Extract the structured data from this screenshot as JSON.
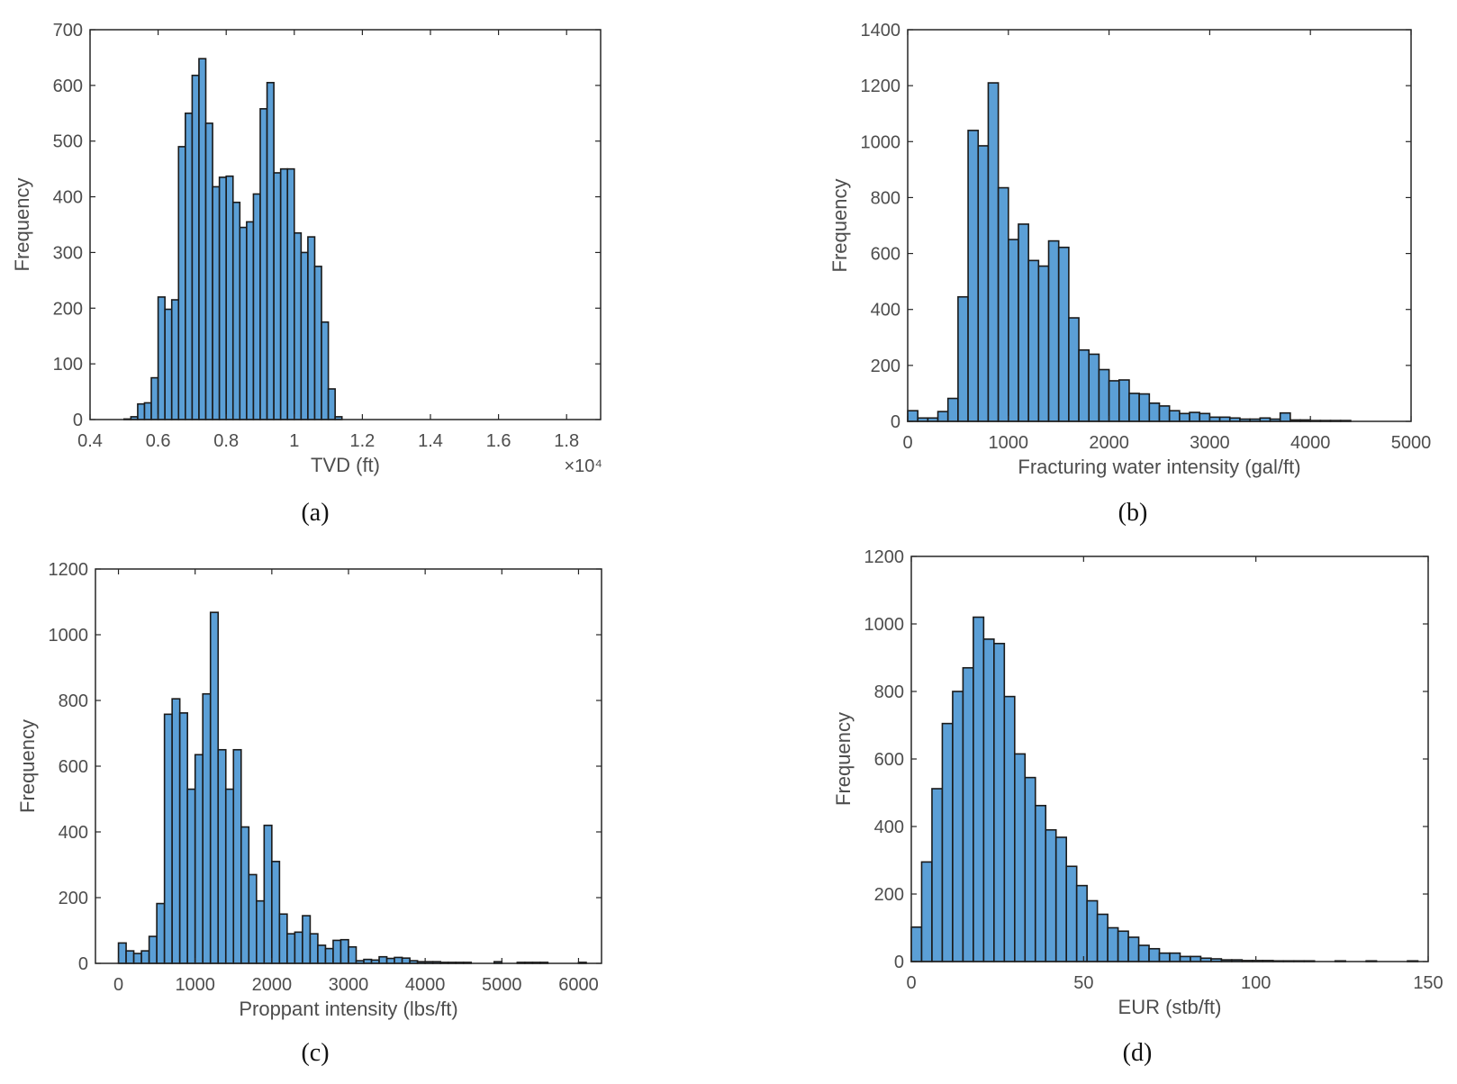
{
  "figure_captions": [
    "(a)",
    "(b)",
    "(c)",
    "(d)"
  ],
  "colors": {
    "bar_fill": "#5b9fd6",
    "bar_stroke": "#1a1a1a",
    "axis": "#262626",
    "text": "#4d4d4d"
  },
  "chart_data": [
    {
      "type": "bar",
      "histogram": true,
      "caption": "(a)",
      "title": "",
      "xlabel": "TVD (ft)",
      "ylabel": "Frequency",
      "x_exponent_label": "×10⁴",
      "xlim": [
        0.4,
        1.9
      ],
      "ylim": [
        0,
        700
      ],
      "xticks": [
        0.4,
        0.6,
        0.8,
        1,
        1.2,
        1.4,
        1.6,
        1.8
      ],
      "xtick_labels": [
        "0.4",
        "0.6",
        "0.8",
        "1",
        "1.2",
        "1.4",
        "1.6",
        "1.8"
      ],
      "yticks": [
        0,
        100,
        200,
        300,
        400,
        500,
        600,
        700
      ],
      "ytick_labels": [
        "0",
        "100",
        "200",
        "300",
        "400",
        "500",
        "600",
        "700"
      ],
      "bin_start": 0.5,
      "bin_width": 0.02,
      "values": [
        1,
        5,
        28,
        30,
        75,
        220,
        198,
        215,
        490,
        550,
        618,
        648,
        532,
        418,
        435,
        437,
        390,
        345,
        355,
        405,
        558,
        605,
        443,
        450,
        450,
        335,
        300,
        328,
        275,
        175,
        55,
        5
      ]
    },
    {
      "type": "bar",
      "histogram": true,
      "caption": "(b)",
      "title": "",
      "xlabel": "Fracturing water intensity (gal/ft)",
      "ylabel": "Frequency",
      "xlim": [
        0,
        5000
      ],
      "ylim": [
        0,
        1400
      ],
      "xticks": [
        0,
        1000,
        2000,
        3000,
        4000,
        5000
      ],
      "xtick_labels": [
        "0",
        "1000",
        "2000",
        "3000",
        "4000",
        "5000"
      ],
      "yticks": [
        0,
        200,
        400,
        600,
        800,
        1000,
        1200,
        1400
      ],
      "ytick_labels": [
        "0",
        "200",
        "400",
        "600",
        "800",
        "1000",
        "1200",
        "1400"
      ],
      "bin_start": 0,
      "bin_width": 100,
      "values": [
        38,
        12,
        12,
        35,
        82,
        445,
        1040,
        985,
        1210,
        835,
        650,
        705,
        575,
        555,
        645,
        622,
        370,
        255,
        240,
        185,
        145,
        148,
        100,
        98,
        65,
        55,
        38,
        28,
        32,
        28,
        15,
        15,
        12,
        8,
        8,
        12,
        8,
        30,
        5,
        5,
        3,
        3,
        3,
        3
      ]
    },
    {
      "type": "bar",
      "histogram": true,
      "caption": "(c)",
      "title": "",
      "xlabel": "Proppant intensity (lbs/ft)",
      "ylabel": "Frequency",
      "xlim": [
        -300,
        6300
      ],
      "ylim": [
        0,
        1200
      ],
      "xticks": [
        0,
        1000,
        2000,
        3000,
        4000,
        5000,
        6000
      ],
      "xtick_labels": [
        "0",
        "1000",
        "2000",
        "3000",
        "4000",
        "5000",
        "6000"
      ],
      "yticks": [
        0,
        200,
        400,
        600,
        800,
        1000,
        1200
      ],
      "ytick_labels": [
        "0",
        "200",
        "400",
        "600",
        "800",
        "1000",
        "1200"
      ],
      "bin_start": 0,
      "bin_width": 100,
      "values": [
        62,
        38,
        30,
        38,
        82,
        182,
        758,
        805,
        762,
        530,
        635,
        820,
        1068,
        650,
        530,
        650,
        415,
        270,
        190,
        420,
        310,
        150,
        90,
        95,
        145,
        90,
        55,
        45,
        70,
        72,
        50,
        8,
        12,
        10,
        20,
        15,
        18,
        16,
        8,
        5,
        5,
        5,
        3,
        3,
        3,
        3,
        0,
        0,
        0,
        5,
        0,
        0,
        3,
        3,
        3,
        3,
        0,
        0,
        0,
        0,
        3
      ]
    },
    {
      "type": "bar",
      "histogram": true,
      "caption": "(d)",
      "title": "",
      "xlabel": "EUR (stb/ft)",
      "ylabel": "Frequency",
      "xlim": [
        0,
        150
      ],
      "ylim": [
        0,
        1200
      ],
      "xticks": [
        0,
        50,
        100,
        150
      ],
      "xtick_labels": [
        "0",
        "50",
        "100",
        "150"
      ],
      "yticks": [
        0,
        200,
        400,
        600,
        800,
        1000,
        1200
      ],
      "ytick_labels": [
        "0",
        "200",
        "400",
        "600",
        "800",
        "1000",
        "1200"
      ],
      "bin_start": 0,
      "bin_width": 3,
      "values": [
        102,
        295,
        512,
        705,
        800,
        870,
        1020,
        955,
        942,
        785,
        615,
        545,
        462,
        390,
        368,
        282,
        225,
        180,
        140,
        100,
        90,
        72,
        48,
        38,
        25,
        25,
        15,
        15,
        10,
        8,
        5,
        5,
        3,
        3,
        3,
        2,
        2,
        2,
        2,
        0,
        0,
        2,
        0,
        0,
        2,
        0,
        0,
        0,
        2
      ]
    }
  ]
}
